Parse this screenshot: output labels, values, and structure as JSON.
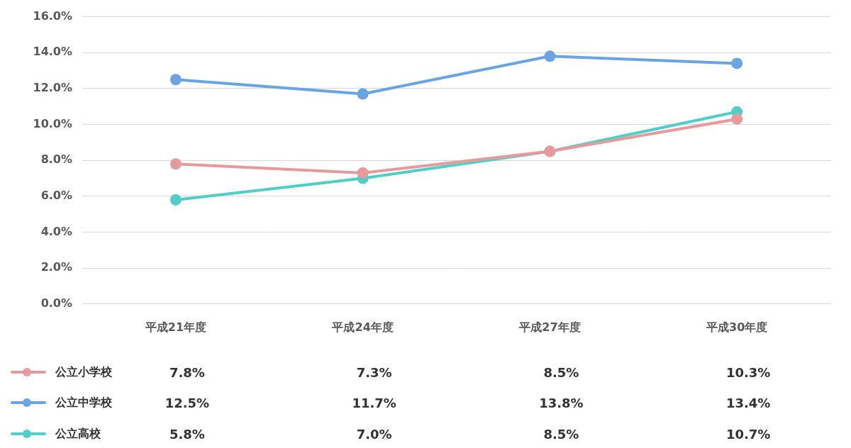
{
  "chart_data": {
    "type": "line",
    "categories": [
      "平成21年度",
      "平成24年度",
      "平成27年度",
      "平成30年度"
    ],
    "series": [
      {
        "name": "公立小学校",
        "color": "#e69a9b",
        "values": [
          7.8,
          7.3,
          8.5,
          10.3
        ],
        "value_labels": [
          "7.8%",
          "7.3%",
          "8.5%",
          "10.3%"
        ]
      },
      {
        "name": "公立中学校",
        "color": "#6aa4e3",
        "values": [
          12.5,
          11.7,
          13.8,
          13.4
        ],
        "value_labels": [
          "12.5%",
          "11.7%",
          "13.8%",
          "13.4%"
        ]
      },
      {
        "name": "公立高校",
        "color": "#4fcfc8",
        "values": [
          5.8,
          7.0,
          8.5,
          10.7
        ],
        "value_labels": [
          "5.8%",
          "7.0%",
          "8.5%",
          "10.7%"
        ]
      }
    ],
    "ylim": [
      0,
      16
    ],
    "yticks": [
      {
        "value": 0,
        "label": "0.0%"
      },
      {
        "value": 2,
        "label": "2.0%"
      },
      {
        "value": 4,
        "label": "4.0%"
      },
      {
        "value": 6,
        "label": "6.0%"
      },
      {
        "value": 8,
        "label": "8.0%"
      },
      {
        "value": 10,
        "label": "10.0%"
      },
      {
        "value": 12,
        "label": "12.0%"
      },
      {
        "value": 14,
        "label": "14.0%"
      },
      {
        "value": 16,
        "label": "16.0%"
      }
    ],
    "grid": true,
    "legend": "bottom",
    "marker": "circle"
  }
}
